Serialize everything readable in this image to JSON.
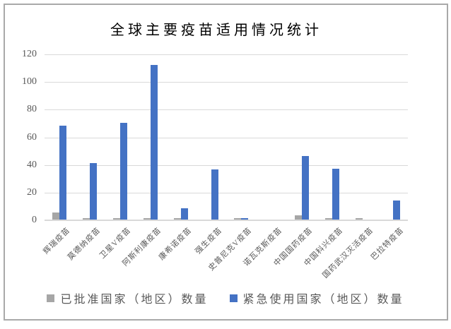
{
  "window": {
    "background": "#ffffff",
    "border_color": "#a9a9a9"
  },
  "chart_data": {
    "type": "bar",
    "title": "全球主要疫苗适用情况统计",
    "categories": [
      "辉瑞疫苗",
      "莫德纳疫苗",
      "卫星V疫苗",
      "阿斯利康疫苗",
      "康希诺疫苗",
      "强生疫苗",
      "史普尼克V疫苗",
      "诺瓦克斯疫苗",
      "中国国药疫苗",
      "中国科兴疫苗",
      "国药武汉灭活疫苗",
      "巴拉特疫苗"
    ],
    "series": [
      {
        "key": "approved",
        "name": "已批准国家（地区）数量",
        "color": "#a6a6a6",
        "values": [
          5,
          1,
          1,
          1,
          1,
          0,
          1,
          0,
          3,
          1,
          1,
          0
        ]
      },
      {
        "key": "emergency",
        "name": "紧急使用国家（地区）数量",
        "color": "#4472c4",
        "values": [
          68,
          41,
          70,
          112,
          8,
          36,
          1,
          0,
          46,
          37,
          0,
          14
        ]
      }
    ],
    "xlabel": "",
    "ylabel": "",
    "ylim": [
      0,
      120
    ],
    "yticks": [
      0,
      20,
      40,
      60,
      80,
      100,
      120
    ],
    "grid": "horizontal",
    "gridline_color": "#d9d9d9",
    "axis_text_color": "#595959",
    "legend_position": "bottom"
  }
}
